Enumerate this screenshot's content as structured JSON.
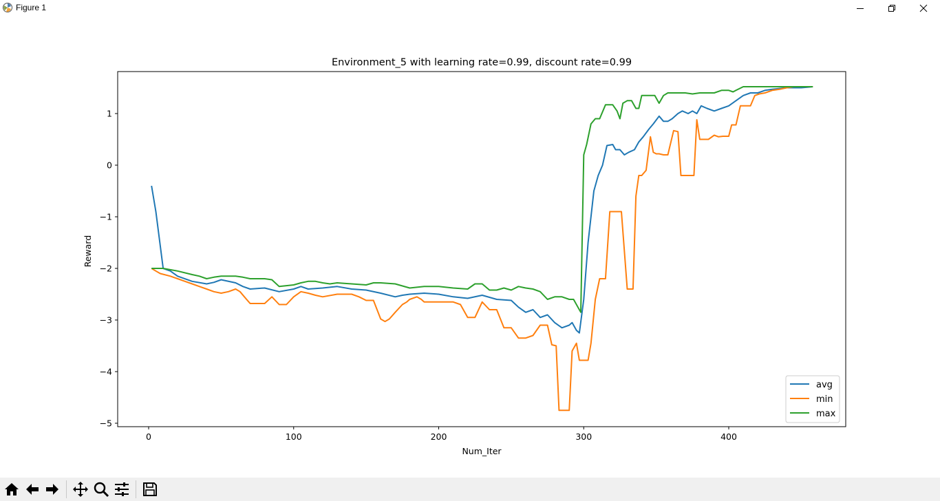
{
  "window": {
    "title": "Figure 1"
  },
  "toolbar": {
    "buttons": [
      "home-icon",
      "back-arrow-icon",
      "forward-arrow-icon",
      "pan-icon",
      "zoom-icon",
      "configure-subplots-icon",
      "save-icon"
    ]
  },
  "colors": {
    "avg": "#1f77b4",
    "min": "#ff7f0e",
    "max": "#2ca02c"
  },
  "chart_data": {
    "type": "line",
    "title": "Environment_5 with learning rate=0.99, discount rate=0.99",
    "xlabel": "Num_Iter",
    "ylabel": "Reward",
    "xlim": [
      -20,
      480
    ],
    "ylim": [
      -5.1,
      1.8
    ],
    "xticks": [
      "0",
      "100",
      "200",
      "300",
      "400"
    ],
    "yticks": [
      "−5",
      "−4",
      "−3",
      "−2",
      "−1",
      "0",
      "1"
    ],
    "legend_position": "lower right",
    "grid": false,
    "series": [
      {
        "name": "avg",
        "x": [
          2,
          5,
          10,
          15,
          20,
          30,
          40,
          45,
          50,
          60,
          65,
          70,
          80,
          90,
          100,
          105,
          110,
          120,
          130,
          140,
          150,
          160,
          170,
          175,
          180,
          190,
          200,
          210,
          220,
          230,
          240,
          250,
          255,
          260,
          265,
          270,
          275,
          280,
          285,
          290,
          292,
          295,
          297,
          300,
          303,
          307,
          310,
          313,
          316,
          320,
          322,
          325,
          328,
          331,
          335,
          338,
          341,
          345,
          348,
          352,
          355,
          358,
          361,
          365,
          368,
          372,
          375,
          378,
          381,
          385,
          390,
          395,
          400,
          405,
          410,
          415,
          420,
          425,
          430,
          440,
          450,
          458
        ],
        "values": [
          -0.4,
          -0.9,
          -2.0,
          -2.05,
          -2.15,
          -2.25,
          -2.3,
          -2.27,
          -2.22,
          -2.28,
          -2.35,
          -2.4,
          -2.38,
          -2.45,
          -2.4,
          -2.35,
          -2.4,
          -2.38,
          -2.35,
          -2.4,
          -2.42,
          -2.48,
          -2.55,
          -2.52,
          -2.5,
          -2.48,
          -2.5,
          -2.55,
          -2.58,
          -2.52,
          -2.6,
          -2.62,
          -2.75,
          -2.85,
          -2.8,
          -2.95,
          -2.9,
          -3.05,
          -3.15,
          -3.1,
          -3.05,
          -3.2,
          -3.25,
          -2.6,
          -1.5,
          -0.5,
          -0.2,
          0.0,
          0.38,
          0.4,
          0.3,
          0.3,
          0.2,
          0.25,
          0.3,
          0.45,
          0.55,
          0.7,
          0.8,
          0.95,
          0.85,
          0.85,
          0.9,
          1.0,
          1.05,
          1.0,
          1.05,
          1.0,
          1.15,
          1.1,
          1.05,
          1.1,
          1.15,
          1.25,
          1.35,
          1.4,
          1.4,
          1.45,
          1.47,
          1.5,
          1.5,
          1.52
        ]
      },
      {
        "name": "min",
        "x": [
          2,
          5,
          8,
          15,
          20,
          25,
          30,
          35,
          40,
          45,
          50,
          55,
          60,
          63,
          66,
          70,
          80,
          85,
          90,
          95,
          100,
          105,
          110,
          115,
          120,
          130,
          140,
          145,
          150,
          155,
          160,
          163,
          166,
          170,
          175,
          178,
          180,
          185,
          188,
          190,
          200,
          210,
          215,
          220,
          225,
          230,
          235,
          240,
          245,
          250,
          255,
          260,
          265,
          270,
          275,
          278,
          281,
          283,
          286,
          290,
          292,
          295,
          297,
          300,
          303,
          305,
          308,
          311,
          315,
          318,
          322,
          326,
          330,
          334,
          336,
          338,
          340,
          343,
          346,
          348,
          350,
          352,
          355,
          358,
          362,
          365,
          367,
          370,
          373,
          376,
          378,
          380,
          383,
          386,
          390,
          393,
          396,
          400,
          402,
          405,
          408,
          411,
          415,
          418,
          421,
          425,
          430,
          435,
          440,
          445,
          450,
          458
        ],
        "values": [
          -2.0,
          -2.05,
          -2.1,
          -2.15,
          -2.2,
          -2.25,
          -2.3,
          -2.35,
          -2.4,
          -2.45,
          -2.48,
          -2.45,
          -2.4,
          -2.45,
          -2.55,
          -2.68,
          -2.68,
          -2.55,
          -2.7,
          -2.7,
          -2.55,
          -2.45,
          -2.48,
          -2.52,
          -2.55,
          -2.5,
          -2.5,
          -2.55,
          -2.62,
          -2.62,
          -2.98,
          -3.03,
          -2.98,
          -2.85,
          -2.7,
          -2.65,
          -2.6,
          -2.55,
          -2.6,
          -2.65,
          -2.65,
          -2.65,
          -2.7,
          -2.95,
          -2.95,
          -2.65,
          -2.8,
          -2.8,
          -3.15,
          -3.15,
          -3.35,
          -3.35,
          -3.3,
          -3.1,
          -3.1,
          -3.48,
          -3.5,
          -4.75,
          -4.75,
          -4.75,
          -3.6,
          -3.45,
          -3.78,
          -3.78,
          -3.78,
          -3.45,
          -2.6,
          -2.2,
          -2.2,
          -0.9,
          -0.9,
          -0.9,
          -2.4,
          -2.4,
          -0.6,
          -0.2,
          -0.2,
          -0.1,
          0.55,
          0.25,
          0.22,
          0.22,
          0.2,
          0.2,
          0.67,
          0.65,
          -0.2,
          -0.2,
          -0.2,
          -0.2,
          0.88,
          0.5,
          0.5,
          0.5,
          0.58,
          0.55,
          0.56,
          0.56,
          0.78,
          0.78,
          1.15,
          1.15,
          1.15,
          1.35,
          1.38,
          1.4,
          1.45,
          1.47,
          1.5,
          1.52,
          1.52,
          1.52
        ]
      },
      {
        "name": "max",
        "x": [
          2,
          10,
          20,
          30,
          35,
          40,
          45,
          50,
          60,
          65,
          70,
          80,
          85,
          90,
          100,
          105,
          110,
          115,
          120,
          125,
          130,
          140,
          150,
          155,
          160,
          170,
          180,
          190,
          200,
          210,
          220,
          225,
          230,
          235,
          240,
          245,
          250,
          255,
          260,
          265,
          270,
          275,
          280,
          285,
          290,
          293,
          296,
          298,
          300,
          302,
          305,
          308,
          311,
          315,
          320,
          323,
          325,
          327,
          330,
          333,
          336,
          338,
          340,
          343,
          346,
          349,
          352,
          355,
          358,
          362,
          365,
          370,
          375,
          380,
          385,
          390,
          395,
          400,
          403,
          405,
          410,
          420,
          430,
          440,
          450,
          458
        ],
        "values": [
          -2.0,
          -2.0,
          -2.05,
          -2.12,
          -2.15,
          -2.2,
          -2.17,
          -2.15,
          -2.15,
          -2.17,
          -2.2,
          -2.2,
          -2.22,
          -2.35,
          -2.32,
          -2.28,
          -2.25,
          -2.25,
          -2.28,
          -2.3,
          -2.28,
          -2.3,
          -2.32,
          -2.28,
          -2.28,
          -2.3,
          -2.38,
          -2.35,
          -2.35,
          -2.38,
          -2.4,
          -2.3,
          -2.3,
          -2.42,
          -2.42,
          -2.38,
          -2.42,
          -2.35,
          -2.38,
          -2.4,
          -2.45,
          -2.6,
          -2.55,
          -2.55,
          -2.6,
          -2.6,
          -2.75,
          -2.85,
          0.2,
          0.4,
          0.8,
          0.9,
          0.9,
          1.17,
          1.17,
          1.05,
          0.9,
          1.2,
          1.25,
          1.25,
          1.1,
          1.1,
          1.35,
          1.35,
          1.35,
          1.35,
          1.2,
          1.35,
          1.4,
          1.4,
          1.4,
          1.4,
          1.38,
          1.4,
          1.4,
          1.4,
          1.45,
          1.45,
          1.42,
          1.45,
          1.52,
          1.52,
          1.52,
          1.52,
          1.52,
          1.52
        ]
      }
    ]
  }
}
